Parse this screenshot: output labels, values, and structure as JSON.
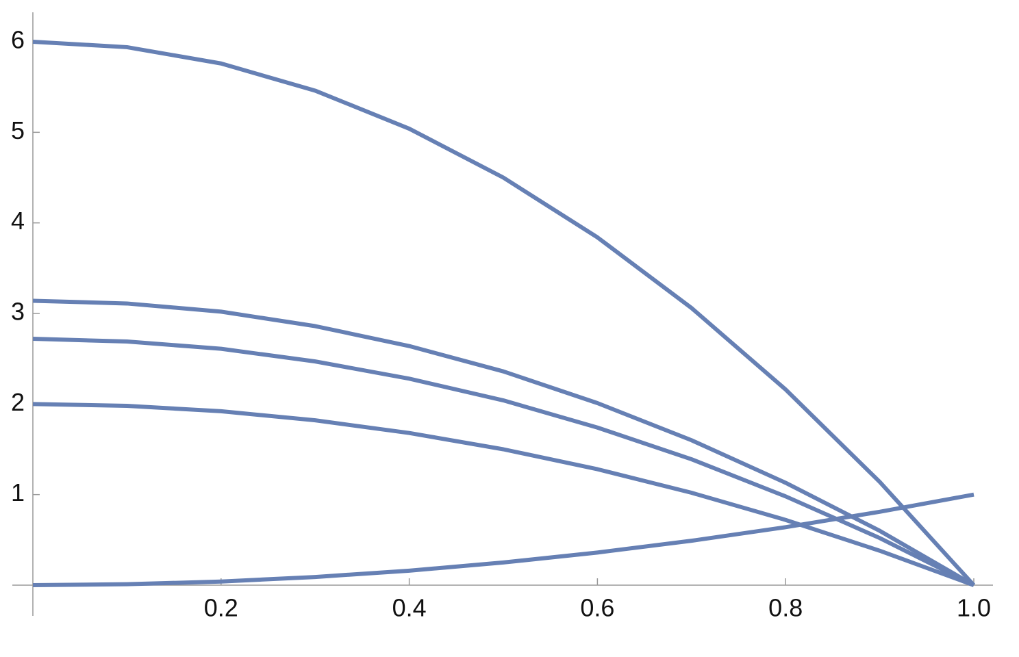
{
  "chart_data": {
    "type": "line",
    "x": [
      0,
      0.1,
      0.2,
      0.3,
      0.4,
      0.5,
      0.6,
      0.7,
      0.8,
      0.9,
      1
    ],
    "series": [
      {
        "color": "#6680b4",
        "values": [
          6,
          5.94,
          5.76,
          5.46,
          5.04,
          4.5,
          3.84,
          3.06,
          2.16,
          1.14,
          0
        ]
      },
      {
        "color": "#6680b4",
        "values": [
          3.14,
          3.11,
          3.02,
          2.86,
          2.64,
          2.36,
          2.01,
          1.6,
          1.13,
          0.6,
          0
        ]
      },
      {
        "color": "#6680b4",
        "values": [
          2.72,
          2.69,
          2.61,
          2.47,
          2.28,
          2.04,
          1.74,
          1.39,
          0.98,
          0.52,
          0
        ]
      },
      {
        "color": "#6680b4",
        "values": [
          2,
          1.98,
          1.92,
          1.82,
          1.68,
          1.5,
          1.28,
          1.02,
          0.72,
          0.38,
          0
        ]
      },
      {
        "color": "#6680b4",
        "values": [
          0,
          0.01,
          0.04,
          0.09,
          0.16,
          0.25,
          0.36,
          0.49,
          0.64,
          0.81,
          1
        ]
      }
    ],
    "xlim": [
      0,
      1
    ],
    "ylim": [
      0,
      6
    ],
    "xticks": [
      0.2,
      0.4,
      0.6,
      0.8,
      {
        "value": 1,
        "label": "1.0"
      }
    ],
    "yticks": [
      1,
      2,
      3,
      4,
      5,
      6
    ],
    "grid": false
  }
}
